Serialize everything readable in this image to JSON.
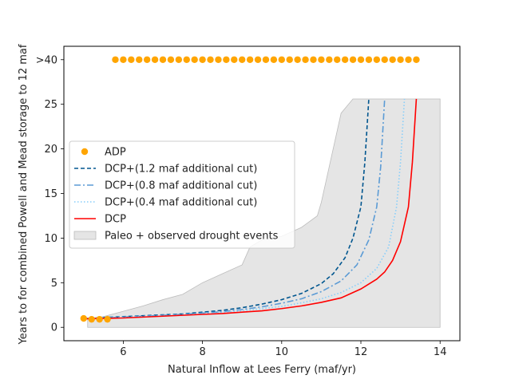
{
  "chart_data": {
    "type": "line",
    "title": "",
    "xlabel": "Natural Inflow at Lees Ferry (maf/yr)",
    "ylabel": "Years to for combined Powell and Mead storage to 12 maf",
    "xlim": [
      4.5,
      14.5
    ],
    "ylim": [
      -1.5,
      31.5
    ],
    "x_ticks": [
      6,
      8,
      10,
      12,
      14
    ],
    "y_ticks": [
      {
        "value": 0,
        "label": "0"
      },
      {
        "value": 5,
        "label": "5"
      },
      {
        "value": 10,
        "label": "10"
      },
      {
        "value": 15,
        "label": "15"
      },
      {
        "value": 20,
        "label": "20"
      },
      {
        "value": 25,
        "label": "25"
      },
      {
        "value": 30,
        "label": ">40"
      }
    ],
    "legend_position": "center-left",
    "legend": [
      {
        "key": "adp",
        "label": "ADP"
      },
      {
        "key": "dcp12",
        "label": "DCP+(1.2 maf additional cut)"
      },
      {
        "key": "dcp08",
        "label": "DCP+(0.8 maf additional cut)"
      },
      {
        "key": "dcp04",
        "label": "DCP+(0.4 maf additional cut)"
      },
      {
        "key": "dcp",
        "label": "DCP"
      },
      {
        "key": "paleo",
        "label": "Paleo + observed drought events"
      }
    ],
    "series": [
      {
        "key": "adp",
        "kind": "scatter",
        "color": "#ffa500",
        "points": [
          [
            5.0,
            1
          ],
          [
            5.2,
            0.9
          ],
          [
            5.4,
            0.9
          ],
          [
            5.6,
            0.9
          ],
          [
            5.8,
            30
          ],
          [
            6.0,
            30
          ],
          [
            6.2,
            30
          ],
          [
            6.4,
            30
          ],
          [
            6.6,
            30
          ],
          [
            6.8,
            30
          ],
          [
            7.0,
            30
          ],
          [
            7.2,
            30
          ],
          [
            7.4,
            30
          ],
          [
            7.6,
            30
          ],
          [
            7.8,
            30
          ],
          [
            8.0,
            30
          ],
          [
            8.2,
            30
          ],
          [
            8.4,
            30
          ],
          [
            8.6,
            30
          ],
          [
            8.8,
            30
          ],
          [
            9.0,
            30
          ],
          [
            9.2,
            30
          ],
          [
            9.4,
            30
          ],
          [
            9.6,
            30
          ],
          [
            9.8,
            30
          ],
          [
            10.0,
            30
          ],
          [
            10.2,
            30
          ],
          [
            10.4,
            30
          ],
          [
            10.6,
            30
          ],
          [
            10.8,
            30
          ],
          [
            11.0,
            30
          ],
          [
            11.2,
            30
          ],
          [
            11.4,
            30
          ],
          [
            11.6,
            30
          ],
          [
            11.8,
            30
          ],
          [
            12.0,
            30
          ],
          [
            12.2,
            30
          ],
          [
            12.4,
            30
          ],
          [
            12.6,
            30
          ],
          [
            12.8,
            30
          ],
          [
            13.0,
            30
          ],
          [
            13.2,
            30
          ],
          [
            13.4,
            30
          ]
        ]
      },
      {
        "key": "dcp12",
        "kind": "line",
        "color": "#00568f",
        "dash": "5,3",
        "points": [
          [
            5.0,
            1.0
          ],
          [
            5.5,
            1.1
          ],
          [
            6.0,
            1.2
          ],
          [
            6.5,
            1.3
          ],
          [
            7.0,
            1.4
          ],
          [
            7.5,
            1.5
          ],
          [
            8.0,
            1.7
          ],
          [
            8.5,
            1.9
          ],
          [
            9.0,
            2.2
          ],
          [
            9.5,
            2.6
          ],
          [
            10.0,
            3.1
          ],
          [
            10.5,
            3.8
          ],
          [
            11.0,
            4.9
          ],
          [
            11.3,
            6.0
          ],
          [
            11.6,
            7.8
          ],
          [
            11.8,
            10.0
          ],
          [
            12.0,
            13.5
          ],
          [
            12.1,
            18.5
          ],
          [
            12.2,
            25.6
          ]
        ]
      },
      {
        "key": "dcp08",
        "kind": "line",
        "color": "#5b9bd5",
        "dash": "8,3,2,3",
        "points": [
          [
            5.0,
            1.0
          ],
          [
            5.5,
            1.05
          ],
          [
            6.0,
            1.15
          ],
          [
            6.5,
            1.25
          ],
          [
            7.0,
            1.35
          ],
          [
            7.5,
            1.45
          ],
          [
            8.0,
            1.6
          ],
          [
            8.5,
            1.75
          ],
          [
            9.0,
            2.0
          ],
          [
            9.5,
            2.3
          ],
          [
            10.0,
            2.7
          ],
          [
            10.5,
            3.2
          ],
          [
            11.0,
            4.0
          ],
          [
            11.5,
            5.2
          ],
          [
            11.9,
            7.0
          ],
          [
            12.2,
            9.8
          ],
          [
            12.4,
            13.5
          ],
          [
            12.5,
            18.0
          ],
          [
            12.6,
            25.6
          ]
        ]
      },
      {
        "key": "dcp04",
        "kind": "line",
        "color": "#87cefa",
        "dash": "1.5,2.5",
        "points": [
          [
            5.0,
            1.0
          ],
          [
            6.0,
            1.1
          ],
          [
            7.0,
            1.3
          ],
          [
            8.0,
            1.5
          ],
          [
            9.0,
            1.85
          ],
          [
            10.0,
            2.35
          ],
          [
            10.5,
            2.75
          ],
          [
            11.0,
            3.2
          ],
          [
            11.5,
            3.9
          ],
          [
            12.0,
            5.0
          ],
          [
            12.4,
            6.6
          ],
          [
            12.7,
            9.0
          ],
          [
            12.9,
            13.5
          ],
          [
            13.0,
            18.5
          ],
          [
            13.1,
            25.6
          ]
        ]
      },
      {
        "key": "dcp",
        "kind": "line",
        "color": "#ff0000",
        "points": [
          [
            5.0,
            0.95
          ],
          [
            5.5,
            1.0
          ],
          [
            6.0,
            1.05
          ],
          [
            6.5,
            1.15
          ],
          [
            7.0,
            1.25
          ],
          [
            7.5,
            1.35
          ],
          [
            8.0,
            1.45
          ],
          [
            8.5,
            1.55
          ],
          [
            9.0,
            1.7
          ],
          [
            9.5,
            1.85
          ],
          [
            10.0,
            2.1
          ],
          [
            10.5,
            2.4
          ],
          [
            11.0,
            2.8
          ],
          [
            11.5,
            3.3
          ],
          [
            12.0,
            4.3
          ],
          [
            12.4,
            5.4
          ],
          [
            12.6,
            6.2
          ],
          [
            12.8,
            7.5
          ],
          [
            13.0,
            9.6
          ],
          [
            13.2,
            13.5
          ],
          [
            13.3,
            18.5
          ],
          [
            13.4,
            25.6
          ]
        ]
      },
      {
        "key": "paleo",
        "kind": "area",
        "color": "#e5e5e5",
        "edge": "#bcbcbc",
        "upper": [
          [
            5.1,
            1.0
          ],
          [
            5.5,
            1.2
          ],
          [
            6.0,
            1.8
          ],
          [
            6.5,
            2.4
          ],
          [
            7.0,
            3.1
          ],
          [
            7.5,
            3.7
          ],
          [
            8.0,
            5.0
          ],
          [
            8.5,
            6.0
          ],
          [
            9.0,
            7.0
          ],
          [
            9.2,
            9.0
          ],
          [
            9.5,
            9.8
          ],
          [
            10.0,
            10.2
          ],
          [
            10.5,
            11.2
          ],
          [
            10.9,
            12.5
          ],
          [
            11.0,
            14.0
          ],
          [
            11.2,
            18.0
          ],
          [
            11.4,
            22.0
          ],
          [
            11.5,
            24.0
          ],
          [
            11.8,
            25.6
          ],
          [
            14.0,
            25.6
          ]
        ],
        "lower": [
          [
            14.0,
            0.0
          ],
          [
            5.1,
            0.0
          ]
        ]
      }
    ]
  }
}
